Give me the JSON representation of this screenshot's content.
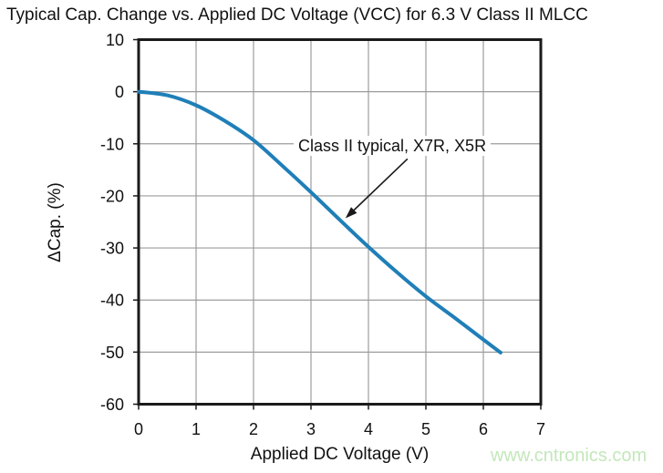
{
  "chart_data": {
    "type": "line",
    "title": "Typical Cap. Change vs. Applied DC Voltage (VCC) for 6.3 V Class II MLCC",
    "xlabel": "Applied DC Voltage (V)",
    "ylabel": "ΔCap. (%)",
    "xlim": [
      0,
      7
    ],
    "ylim": [
      -60,
      10
    ],
    "xticks": [
      0,
      1,
      2,
      3,
      4,
      5,
      6,
      7
    ],
    "yticks": [
      10,
      0,
      -10,
      -20,
      -30,
      -40,
      -50,
      -60
    ],
    "grid": true,
    "legend_position": "none",
    "series": [
      {
        "name": "Class II typical, X7R, X5R",
        "color": "#1f7fb8",
        "x": [
          0,
          0.5,
          1,
          1.5,
          2,
          2.5,
          3,
          3.5,
          4,
          4.5,
          5,
          5.5,
          6,
          6.3
        ],
        "y": [
          0,
          -0.7,
          -2.6,
          -5.6,
          -9.3,
          -14.2,
          -19.3,
          -24.6,
          -29.8,
          -34.7,
          -39.3,
          -43.4,
          -47.6,
          -50.1
        ]
      }
    ],
    "annotation": {
      "text": "Class II typical, X7R, X5R",
      "arrow_from_data_xy": [
        4.68,
        -12.9
      ],
      "arrow_to_data_xy": [
        3.6,
        -24.3
      ]
    }
  },
  "watermark": {
    "text": "www.cntronics.com",
    "color": "#c3e7bb"
  },
  "colors": {
    "curve": "#1f7fb8",
    "grid": "#9c9c9c",
    "frame": "#1a1a1a",
    "text": "#111111"
  }
}
